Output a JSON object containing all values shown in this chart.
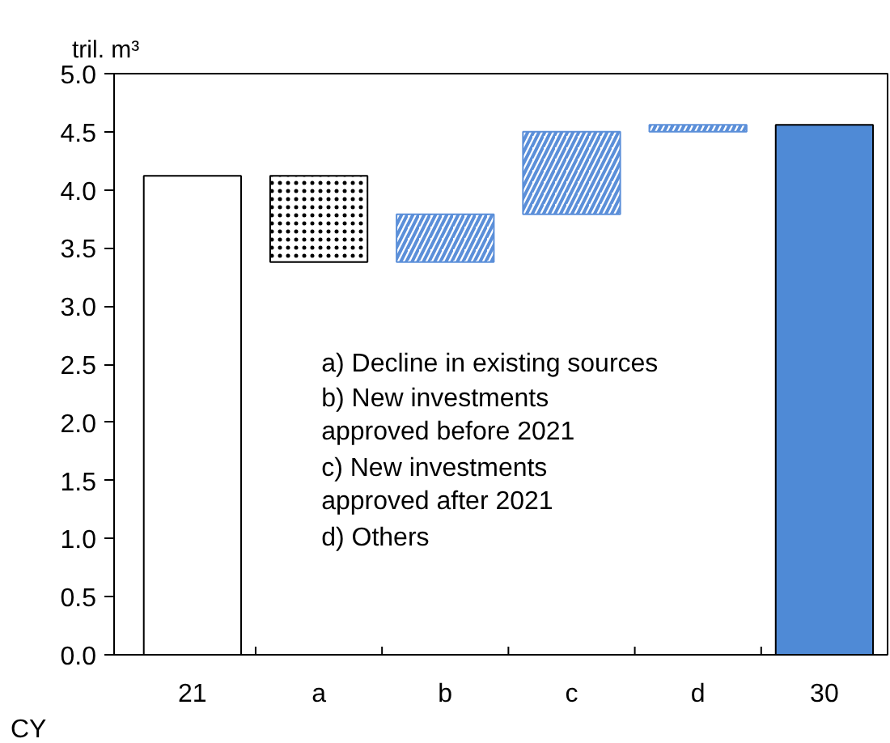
{
  "chart_data": {
    "type": "bar",
    "ylabel": "tril. m³",
    "xlabel": "CY",
    "categories": [
      "21",
      "a",
      "b",
      "c",
      "d",
      "30"
    ],
    "values": [
      4.12,
      -0.74,
      0.41,
      0.71,
      0.06,
      4.56
    ],
    "base": [
      0,
      4.12,
      3.38,
      3.79,
      4.5,
      0
    ],
    "colors": [
      "#ffffff",
      "#000000",
      "#5b8fd9",
      "#5b8fd9",
      "#5b8fd9",
      "#4f8ad6"
    ],
    "ylim": [
      0,
      5
    ],
    "yticks": [
      {
        "value": 0,
        "label": "0.0"
      },
      0.5,
      {
        "value": 1,
        "label": "1.0"
      },
      1.5,
      {
        "value": 2,
        "label": "2.0"
      },
      2.5,
      {
        "value": 3,
        "label": "3.0"
      },
      3.5,
      {
        "value": 4,
        "label": "4.0"
      },
      4.5,
      {
        "value": 5,
        "label": "5.0"
      }
    ],
    "grid": false,
    "annotations": [
      "a) Decline in existing sources",
      "b) New investments\n    approved before 2021",
      "c) New investments\n    approved after 2021",
      "d) Others"
    ]
  }
}
